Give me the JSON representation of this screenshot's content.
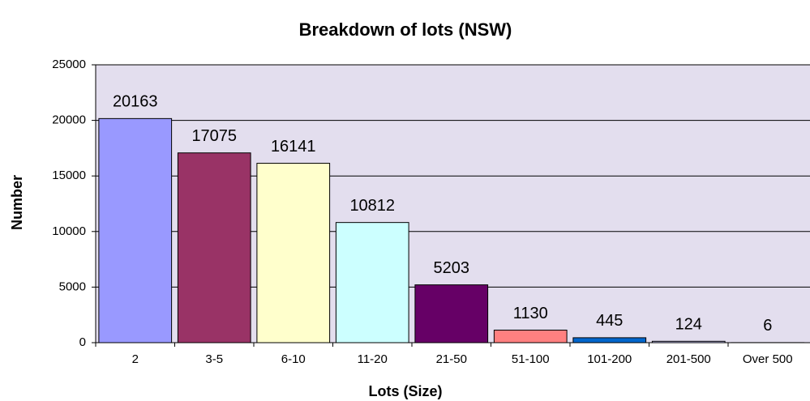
{
  "chart_data": {
    "type": "bar",
    "title": "Breakdown of lots (NSW)",
    "x_label": "Lots (Size)",
    "y_label": "Number",
    "categories": [
      "2",
      "3-5",
      "6-10",
      "11-20",
      "21-50",
      "51-100",
      "101-200",
      "201-500",
      "Over 500"
    ],
    "values": [
      20163,
      17075,
      16141,
      10812,
      5203,
      1130,
      445,
      124,
      6
    ],
    "colors": [
      "#9999ff",
      "#993366",
      "#ffffcc",
      "#ccffff",
      "#660066",
      "#ff8080",
      "#0066cc",
      "#ccccff",
      "#000080"
    ],
    "ylim": [
      0,
      25000
    ],
    "yticks": [
      0,
      5000,
      10000,
      15000,
      20000,
      25000
    ],
    "grid": true
  }
}
